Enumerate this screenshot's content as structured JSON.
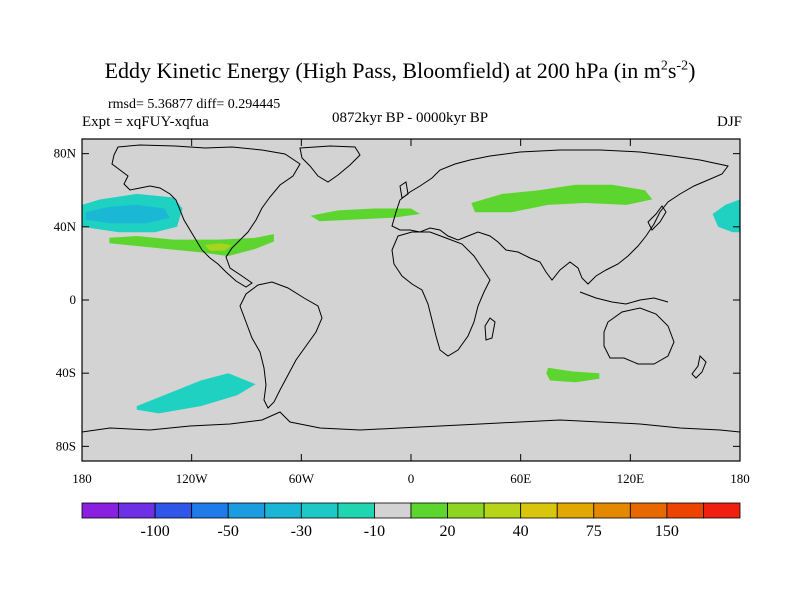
{
  "title": {
    "main": "Eddy Kinetic Energy (High Pass, Bloomfield) at 200 hPa (in m",
    "sup1": "2",
    "mid": "s",
    "sup2": "-2",
    "end": ")"
  },
  "stats": "rmsd= 5.36877  diff= 0.294445",
  "experiment": "Expt = xqFUY-xqfua",
  "period": "0872kyr BP - 0000kyr BP",
  "season": "DJF",
  "map": {
    "ocean_color": "#d3d3d3",
    "lat_labels": [
      {
        "lat": 80,
        "text": "80N"
      },
      {
        "lat": 40,
        "text": "40N"
      },
      {
        "lat": 0,
        "text": "0"
      },
      {
        "lat": -40,
        "text": "40S"
      },
      {
        "lat": -80,
        "text": "80S"
      }
    ],
    "lon_labels": [
      {
        "lon": -180,
        "text": "180"
      },
      {
        "lon": -120,
        "text": "120W"
      },
      {
        "lon": -60,
        "text": "60W"
      },
      {
        "lon": 0,
        "text": "0"
      },
      {
        "lon": 60,
        "text": "60E"
      },
      {
        "lon": 120,
        "text": "120E"
      },
      {
        "lon": 180,
        "text": "180"
      }
    ],
    "anomaly_regions": [
      {
        "name": "north-pacific-negative",
        "color": "#1fd1c1",
        "points": [
          [
            -180,
            52
          ],
          [
            -170,
            55
          ],
          [
            -150,
            58
          ],
          [
            -130,
            56
          ],
          [
            -125,
            50
          ],
          [
            -128,
            40
          ],
          [
            -140,
            37
          ],
          [
            -160,
            37
          ],
          [
            -180,
            40
          ]
        ]
      },
      {
        "name": "north-pacific-inner-negative",
        "color": "#1ab8d4",
        "points": [
          [
            -178,
            48
          ],
          [
            -165,
            51
          ],
          [
            -150,
            52
          ],
          [
            -135,
            50
          ],
          [
            -132,
            45
          ],
          [
            -145,
            42
          ],
          [
            -165,
            42
          ],
          [
            -178,
            44
          ]
        ]
      },
      {
        "name": "east-asia-pacific-negative",
        "color": "#1fd1c1",
        "points": [
          [
            180,
            55
          ],
          [
            172,
            52
          ],
          [
            165,
            47
          ],
          [
            168,
            40
          ],
          [
            176,
            37
          ],
          [
            180,
            37
          ]
        ]
      },
      {
        "name": "north-america-positive",
        "color": "#5cd62e",
        "points": [
          [
            -165,
            34
          ],
          [
            -150,
            35
          ],
          [
            -130,
            33
          ],
          [
            -105,
            33
          ],
          [
            -85,
            34
          ],
          [
            -75,
            36
          ],
          [
            -75,
            32
          ],
          [
            -85,
            28
          ],
          [
            -100,
            24
          ],
          [
            -115,
            26
          ],
          [
            -135,
            28
          ],
          [
            -155,
            30
          ],
          [
            -165,
            31
          ]
        ]
      },
      {
        "name": "north-america-core-positive",
        "color": "#a8d420",
        "points": [
          [
            -113,
            30
          ],
          [
            -105,
            31
          ],
          [
            -98,
            30
          ],
          [
            -102,
            27
          ],
          [
            -110,
            27
          ]
        ]
      },
      {
        "name": "north-atlantic-positive",
        "color": "#5cd62e",
        "points": [
          [
            -55,
            46
          ],
          [
            -40,
            49
          ],
          [
            -20,
            50
          ],
          [
            0,
            50
          ],
          [
            5,
            47
          ],
          [
            -10,
            45
          ],
          [
            -30,
            44
          ],
          [
            -50,
            43
          ]
        ]
      },
      {
        "name": "asia-positive",
        "color": "#5cd62e",
        "points": [
          [
            33,
            53
          ],
          [
            50,
            58
          ],
          [
            70,
            60
          ],
          [
            90,
            63
          ],
          [
            110,
            63
          ],
          [
            128,
            60
          ],
          [
            132,
            55
          ],
          [
            118,
            52
          ],
          [
            95,
            53
          ],
          [
            75,
            52
          ],
          [
            55,
            48
          ],
          [
            35,
            48
          ]
        ]
      },
      {
        "name": "south-pacific-negative",
        "color": "#1fd1c1",
        "points": [
          [
            -150,
            -58
          ],
          [
            -135,
            -52
          ],
          [
            -115,
            -44
          ],
          [
            -100,
            -40
          ],
          [
            -85,
            -46
          ],
          [
            -95,
            -52
          ],
          [
            -115,
            -58
          ],
          [
            -138,
            -62
          ],
          [
            -150,
            -60
          ]
        ]
      },
      {
        "name": "south-indian-positive",
        "color": "#5cd62e",
        "points": [
          [
            75,
            -37
          ],
          [
            88,
            -39
          ],
          [
            103,
            -40
          ],
          [
            103,
            -43
          ],
          [
            90,
            -45
          ],
          [
            76,
            -44
          ],
          [
            74,
            -40
          ]
        ]
      }
    ]
  },
  "colorbar": {
    "colors": [
      "#8a1fe0",
      "#6d30e6",
      "#2f56e8",
      "#1d7bea",
      "#1b9be0",
      "#1bb6d6",
      "#1cc9c7",
      "#1fd6b0",
      "#d3d3d3",
      "#5cd62e",
      "#8ed422",
      "#b8d418",
      "#d8c60c",
      "#e0a800",
      "#e48800",
      "#e86800",
      "#ec4400",
      "#f02010"
    ],
    "labels": [
      {
        "after": 1,
        "text": "-100"
      },
      {
        "after": 3,
        "text": "-50"
      },
      {
        "after": 5,
        "text": "-30"
      },
      {
        "after": 7,
        "text": "-10"
      },
      {
        "after": 9,
        "text": "20"
      },
      {
        "after": 11,
        "text": "40"
      },
      {
        "after": 13,
        "text": "75"
      },
      {
        "after": 15,
        "text": "150"
      }
    ]
  }
}
